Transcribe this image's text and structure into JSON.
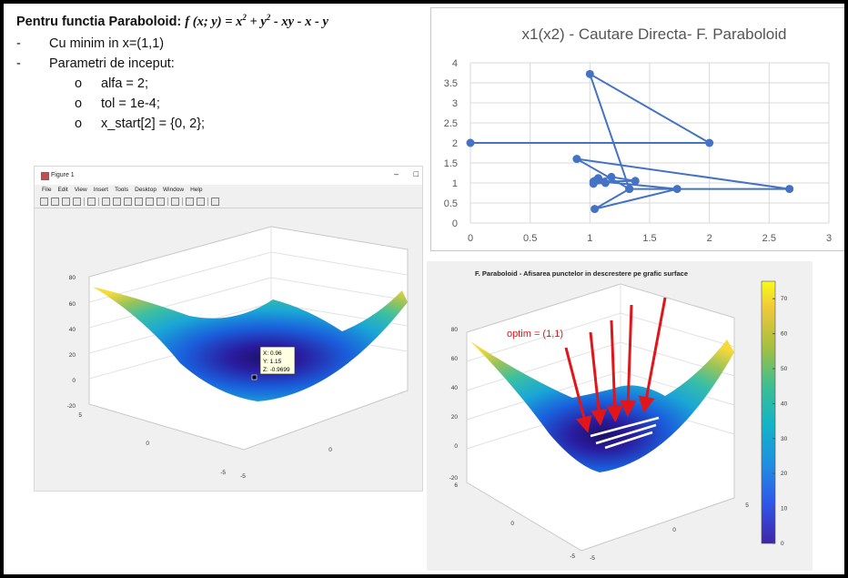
{
  "notes": {
    "title_prefix": "Pentru functia Paraboloid: ",
    "formula_f": "f",
    "formula_args": "(x; y)",
    "formula_eq": " = x",
    "formula_sup1": "2",
    "formula_mid": " + y",
    "formula_sup2": "2",
    "formula_tail": " - xy - x - y",
    "items": [
      "Cu minim in x=(1,1)",
      "Parametri de inceput:"
    ],
    "sub_items": [
      "alfa = 2;",
      "tol =  1e-4;",
      "x_start[2] = {0, 2};"
    ],
    "dash": "-",
    "bullet": "o"
  },
  "figure_window": {
    "title": "Figure 1",
    "minimize": "–",
    "maximize": "□",
    "menus": [
      "File",
      "Edit",
      "View",
      "Insert",
      "Tools",
      "Desktop",
      "Window",
      "Help"
    ],
    "toolbar_icons": [
      "new-file-icon",
      "open-icon",
      "save-icon",
      "print-icon",
      "pointer-icon",
      "zoom-in-icon",
      "zoom-out-icon",
      "pan-icon",
      "rotate-icon",
      "datacursor-icon",
      "brush-icon",
      "colorbar-icon",
      "legend-icon",
      "grid-icon",
      "plot-tools-icon"
    ],
    "z_ticks": [
      "80",
      "60",
      "40",
      "20",
      "0",
      "-20"
    ],
    "y_ticks": [
      "5",
      "0",
      "-5"
    ],
    "x_ticks": [
      "0",
      "-5"
    ],
    "datatip": {
      "x": "X: 0.96",
      "y": "Y: 1.15",
      "z": "Z: -0.9699"
    }
  },
  "chart_data": [
    {
      "type": "line",
      "title": "x1(x2) - Cautare Directa- F. Paraboloid",
      "xlabel": "",
      "ylabel": "",
      "xlim": [
        0,
        3
      ],
      "ylim": [
        0,
        4
      ],
      "x_ticks": [
        "0",
        "0.5",
        "1",
        "1.5",
        "2",
        "2.5",
        "3"
      ],
      "y_ticks": [
        "0",
        "0.5",
        "1",
        "1.5",
        "2",
        "2.5",
        "3",
        "3.5",
        "4"
      ],
      "grid": true,
      "series": [
        {
          "color": "#4472c4",
          "x": [
            0,
            2,
            1,
            1.33,
            0.89,
            2.67,
            1.33,
            1.04,
            1.73,
            1.04,
            1.18,
            1.38,
            1.03,
            1.07,
            1.13,
            1.03
          ],
          "y": [
            2,
            2,
            3.72,
            0.85,
            1.6,
            0.85,
            0.85,
            0.35,
            0.85,
            1.05,
            1.15,
            1.05,
            1.03,
            1.12,
            1.0,
            0.98
          ]
        }
      ]
    },
    {
      "type": "surface",
      "title": "F. Paraboloid - Afisarea punctelor in descrestere pe grafic surface",
      "z_ticks": [
        "80",
        "60",
        "40",
        "20",
        "0",
        "-20"
      ],
      "y_ticks": [
        "6",
        "0",
        "-5"
      ],
      "x_ticks": [
        "5",
        "0",
        "-5"
      ],
      "colorbar_ticks": [
        "70",
        "60",
        "50",
        "40",
        "30",
        "20",
        "10",
        "0"
      ],
      "colorbar_range": [
        0,
        75
      ],
      "annotation": "optim = (1,1)"
    }
  ]
}
